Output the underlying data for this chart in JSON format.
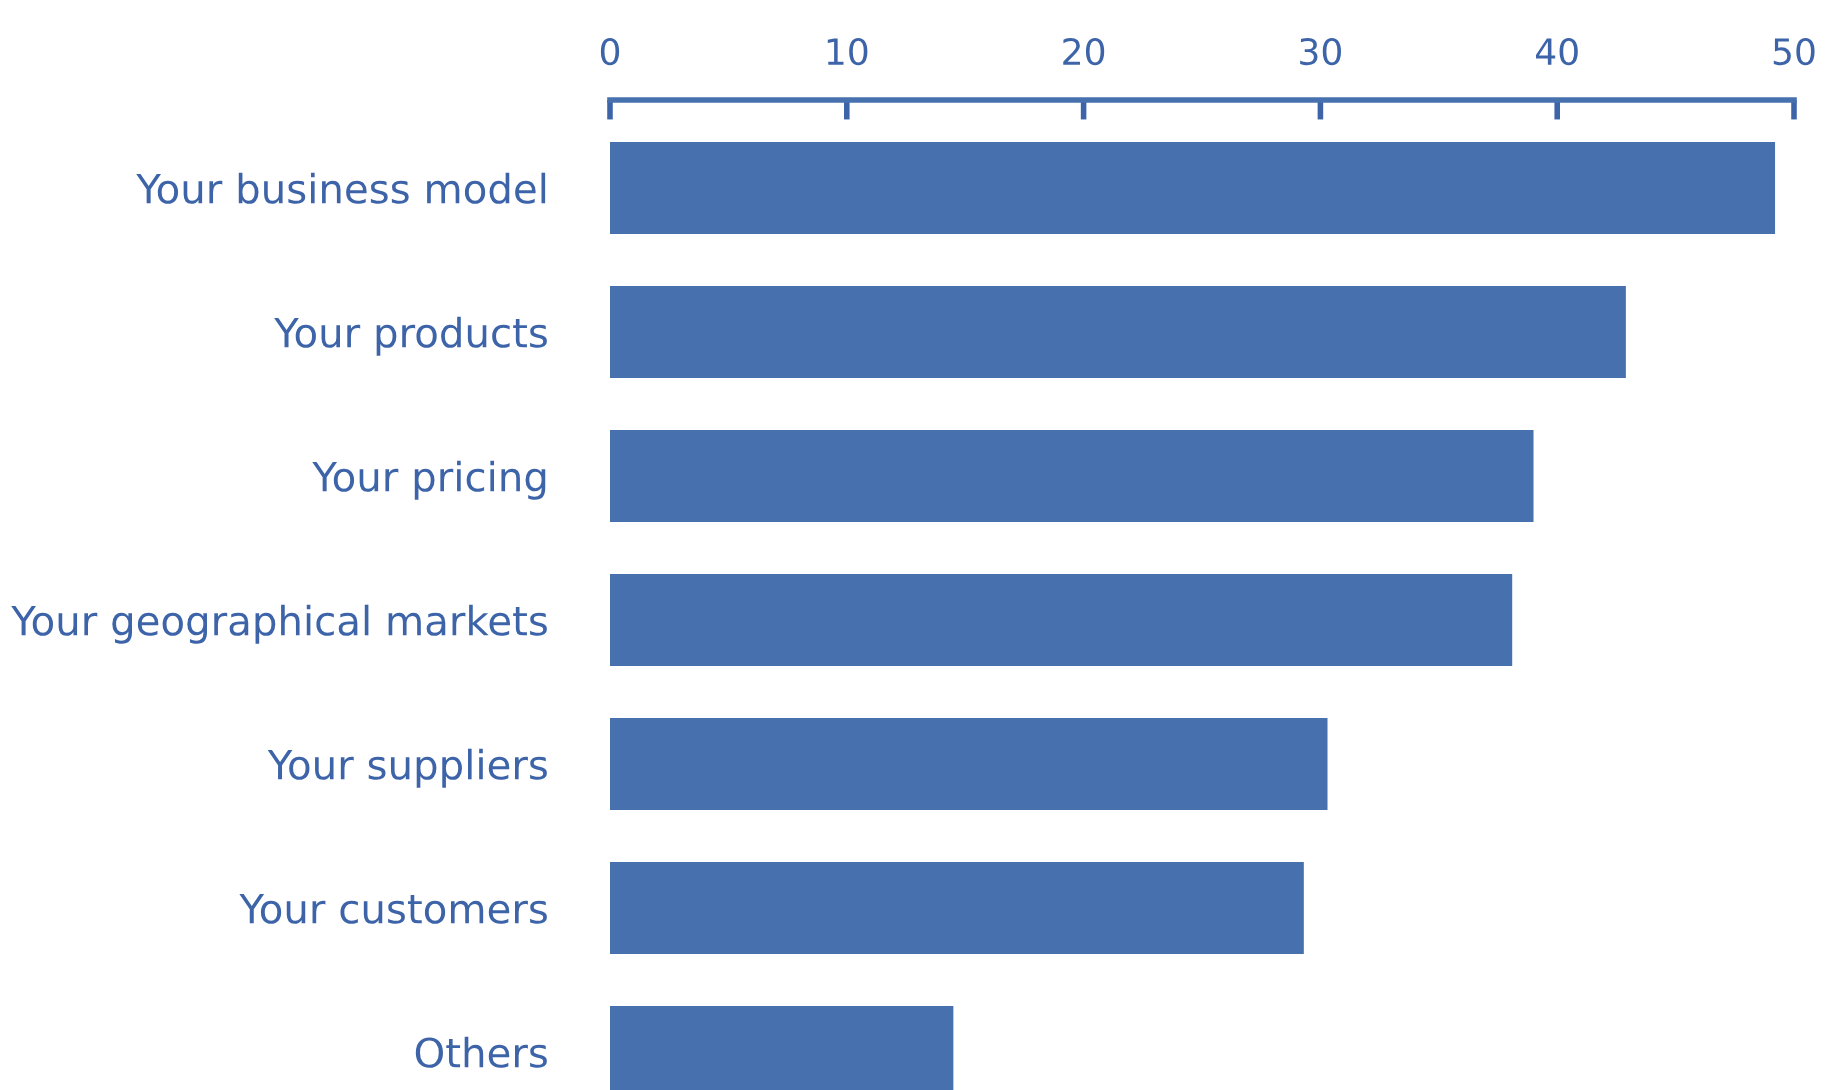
{
  "chart_data": {
    "type": "bar",
    "orientation": "horizontal",
    "categories": [
      "Your business model",
      "Your products",
      "Your pricing",
      "Your geographical markets",
      "Your suppliers",
      "Your customers",
      "Others"
    ],
    "values": [
      49.2,
      42.9,
      39.0,
      38.1,
      30.3,
      29.3,
      14.5
    ],
    "color": "#4670ae",
    "xlim": [
      0,
      50
    ],
    "xticks": [
      0,
      10,
      20,
      30,
      40,
      50
    ],
    "grid": false
  }
}
